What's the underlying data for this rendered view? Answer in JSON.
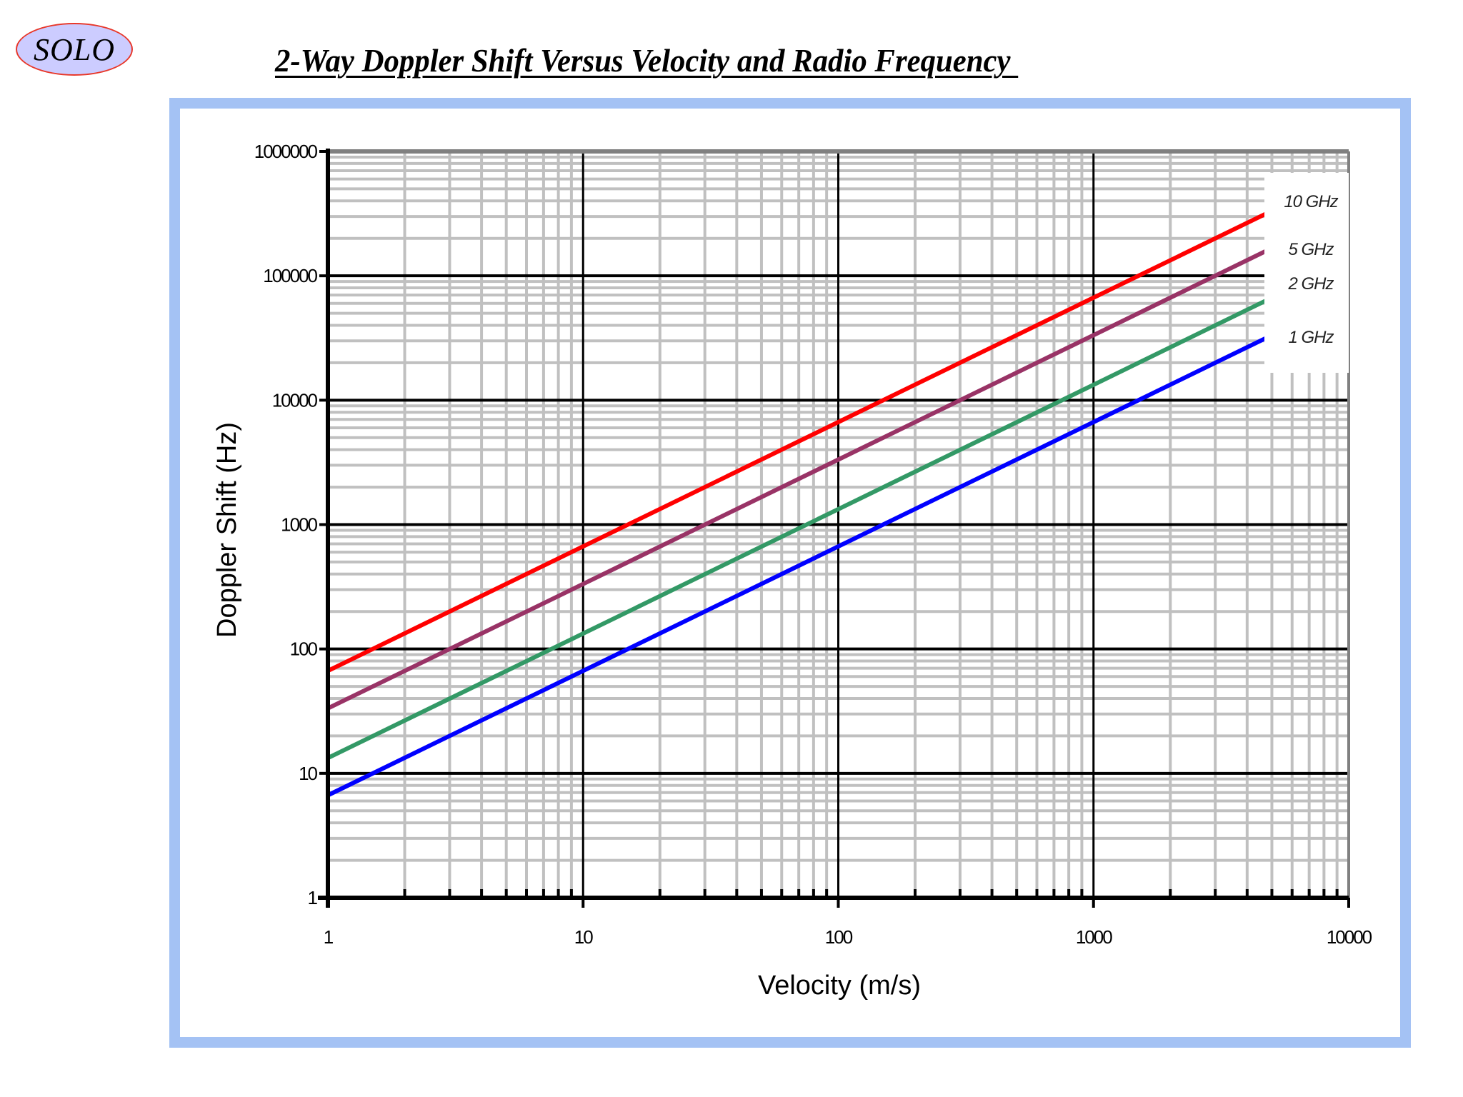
{
  "logo": {
    "text": "SOLO"
  },
  "page": {
    "title": "2-Way Doppler Shift Versus Velocity and Radio Frequency "
  },
  "colors": {
    "frame": "#a4c2f4",
    "logo_fill": "#ccccff",
    "logo_border": "#e8382a",
    "grid_minor": "#c0c0c0",
    "grid_major": "#000000"
  },
  "chart_data": {
    "type": "line",
    "title": "2-Way Doppler Shift Versus Velocity and Radio Frequency",
    "xlabel": "Velocity (m/s)",
    "ylabel": "Doppler Shift (Hz)",
    "xscale": "log",
    "yscale": "log",
    "xlim": [
      1,
      10000
    ],
    "ylim": [
      1,
      1000000
    ],
    "x_ticks": [
      "1",
      "10",
      "100",
      "1000",
      "10000"
    ],
    "y_ticks": [
      "1",
      "10",
      "100",
      "1000",
      "10000",
      "100000",
      "1000000"
    ],
    "grid": true,
    "legend_position": "right",
    "x": [
      1,
      10,
      100,
      1000,
      5000
    ],
    "series": [
      {
        "name": "10 GHz",
        "color": "#ff0000",
        "values": [
          66.7,
          667,
          6670,
          66700,
          333000
        ]
      },
      {
        "name": "5 GHz",
        "color": "#993366",
        "values": [
          33.3,
          333,
          3330,
          33300,
          167000
        ]
      },
      {
        "name": "2 GHz",
        "color": "#339966",
        "values": [
          13.3,
          133,
          1330,
          13300,
          66700
        ]
      },
      {
        "name": "1 GHz",
        "color": "#0000ff",
        "values": [
          6.67,
          66.7,
          667,
          6670,
          33300
        ]
      }
    ]
  }
}
